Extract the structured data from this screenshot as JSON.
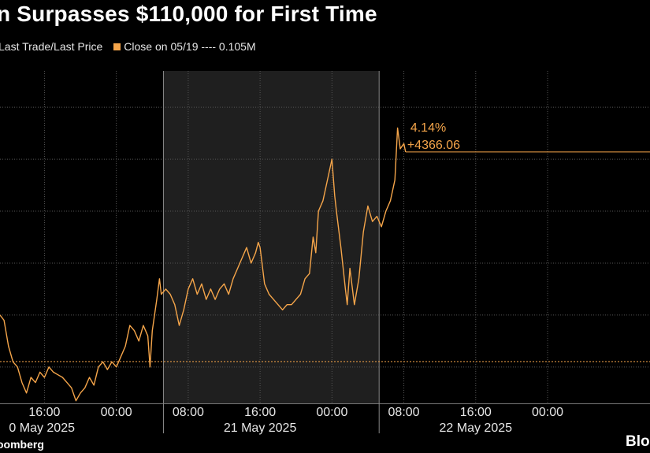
{
  "title": "n Surpasses $110,000 for First Time",
  "legend": {
    "series_label": "Last Trade/Last Price",
    "close_label": "Close on 05/19 ---- 0.105M"
  },
  "source": "oomberg",
  "logo_text": "Bloo",
  "colors": {
    "line": "#f5a54a",
    "background": "#000000",
    "highlight_band": "#1f1f1f",
    "grid": "#555555"
  },
  "chart_data": {
    "type": "line",
    "title": "n Surpasses $110,000 for First Time",
    "x_unit": "hours since 20 May 2025 00:00",
    "x_ticks": [
      {
        "t": 16,
        "label": "16:00"
      },
      {
        "t": 24,
        "label": "00:00"
      },
      {
        "t": 32,
        "label": "08:00"
      },
      {
        "t": 40,
        "label": "16:00"
      },
      {
        "t": 48,
        "label": "00:00"
      },
      {
        "t": 56,
        "label": "08:00"
      },
      {
        "t": 64,
        "label": "16:00"
      },
      {
        "t": 72,
        "label": "00:00"
      }
    ],
    "day_labels": [
      {
        "t": 16,
        "label": "0 May 2025"
      },
      {
        "t": 40,
        "label": "21 May 2025"
      },
      {
        "t": 64,
        "label": "22 May 2025"
      }
    ],
    "day_separators": [
      29.25,
      53.25
    ],
    "highlight_band": [
      29.25,
      53.25
    ],
    "xlim": [
      11.05,
      83.4
    ],
    "ylim": [
      -0.7,
      5.7
    ],
    "y_gridlines": [
      0,
      1,
      2,
      3,
      4,
      5
    ],
    "reference_line": {
      "label": "Close on 05/19",
      "y": 0.105
    },
    "end_annotation": {
      "percent": "4.14%",
      "change": "+4366.06",
      "y": 4.14
    },
    "series": [
      {
        "points": [
          [
            11.05,
            1.0
          ],
          [
            11.5,
            0.9
          ],
          [
            12.0,
            0.4
          ],
          [
            12.5,
            0.1
          ],
          [
            13.0,
            0.0
          ],
          [
            13.5,
            -0.3
          ],
          [
            14.0,
            -0.5
          ],
          [
            14.5,
            -0.2
          ],
          [
            15.0,
            -0.3
          ],
          [
            15.5,
            -0.1
          ],
          [
            16.0,
            -0.2
          ],
          [
            16.5,
            0.0
          ],
          [
            17.0,
            -0.1
          ],
          [
            17.5,
            -0.15
          ],
          [
            18.0,
            -0.2
          ],
          [
            18.5,
            -0.3
          ],
          [
            19.0,
            -0.4
          ],
          [
            19.5,
            -0.65
          ],
          [
            20.0,
            -0.5
          ],
          [
            20.5,
            -0.4
          ],
          [
            21.0,
            -0.2
          ],
          [
            21.5,
            -0.35
          ],
          [
            22.0,
            0.0
          ],
          [
            22.5,
            0.1
          ],
          [
            23.0,
            -0.05
          ],
          [
            23.5,
            0.1
          ],
          [
            24.0,
            0.0
          ],
          [
            24.5,
            0.2
          ],
          [
            25.0,
            0.4
          ],
          [
            25.5,
            0.8
          ],
          [
            26.0,
            0.7
          ],
          [
            26.5,
            0.5
          ],
          [
            27.0,
            0.8
          ],
          [
            27.5,
            0.6
          ],
          [
            27.75,
            0.0
          ],
          [
            28.0,
            0.7
          ],
          [
            28.5,
            1.3
          ],
          [
            28.8,
            1.7
          ],
          [
            29.0,
            1.4
          ],
          [
            29.5,
            1.5
          ],
          [
            30.0,
            1.4
          ],
          [
            30.5,
            1.2
          ],
          [
            31.0,
            0.8
          ],
          [
            31.5,
            1.1
          ],
          [
            32.0,
            1.5
          ],
          [
            32.5,
            1.7
          ],
          [
            33.0,
            1.4
          ],
          [
            33.5,
            1.6
          ],
          [
            34.0,
            1.3
          ],
          [
            34.5,
            1.5
          ],
          [
            35.0,
            1.3
          ],
          [
            35.5,
            1.5
          ],
          [
            36.0,
            1.6
          ],
          [
            36.5,
            1.4
          ],
          [
            37.0,
            1.7
          ],
          [
            37.5,
            1.9
          ],
          [
            38.0,
            2.1
          ],
          [
            38.5,
            2.3
          ],
          [
            39.0,
            2.0
          ],
          [
            39.5,
            2.2
          ],
          [
            39.8,
            2.4
          ],
          [
            40.0,
            2.3
          ],
          [
            40.5,
            1.6
          ],
          [
            41.0,
            1.4
          ],
          [
            41.5,
            1.3
          ],
          [
            42.0,
            1.2
          ],
          [
            42.5,
            1.1
          ],
          [
            43.0,
            1.2
          ],
          [
            43.5,
            1.2
          ],
          [
            44.0,
            1.3
          ],
          [
            44.5,
            1.4
          ],
          [
            45.0,
            1.7
          ],
          [
            45.5,
            1.8
          ],
          [
            45.9,
            2.5
          ],
          [
            46.2,
            2.2
          ],
          [
            46.5,
            3.0
          ],
          [
            47.0,
            3.2
          ],
          [
            47.5,
            3.6
          ],
          [
            48.0,
            4.0
          ],
          [
            48.3,
            3.3
          ],
          [
            48.5,
            3.0
          ],
          [
            49.0,
            2.3
          ],
          [
            49.5,
            1.5
          ],
          [
            49.7,
            1.2
          ],
          [
            50.0,
            1.9
          ],
          [
            50.5,
            1.2
          ],
          [
            51.0,
            1.7
          ],
          [
            51.5,
            2.6
          ],
          [
            52.0,
            3.1
          ],
          [
            52.5,
            2.8
          ],
          [
            53.0,
            2.9
          ],
          [
            53.5,
            2.7
          ],
          [
            54.0,
            3.0
          ],
          [
            54.5,
            3.2
          ],
          [
            55.0,
            3.6
          ],
          [
            55.3,
            4.6
          ],
          [
            55.6,
            4.2
          ],
          [
            56.0,
            4.3
          ],
          [
            56.2,
            4.14
          ]
        ]
      }
    ]
  }
}
